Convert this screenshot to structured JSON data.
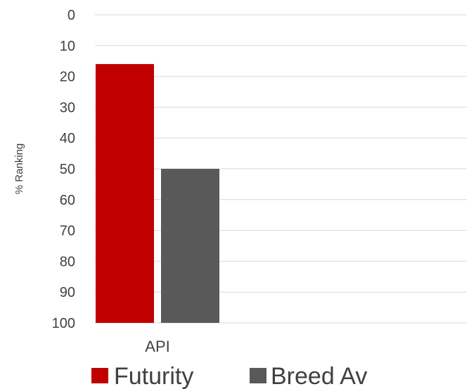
{
  "chart_data": {
    "type": "bar",
    "categories": [
      "API"
    ],
    "series": [
      {
        "name": "Futurity",
        "values": [
          16
        ],
        "color": "#C00000"
      },
      {
        "name": "Breed Av",
        "values": [
          50
        ],
        "color": "#595959"
      }
    ],
    "ylabel": "% Ranking",
    "xlabel": "",
    "ylim": [
      0,
      100
    ],
    "y_inverted": true,
    "bars_grow_from": "bottom",
    "yticks": [
      "0",
      "10",
      "20",
      "30",
      "40",
      "50",
      "60",
      "70",
      "80",
      "90",
      "100"
    ],
    "grid": true,
    "legend_position": "bottom"
  }
}
